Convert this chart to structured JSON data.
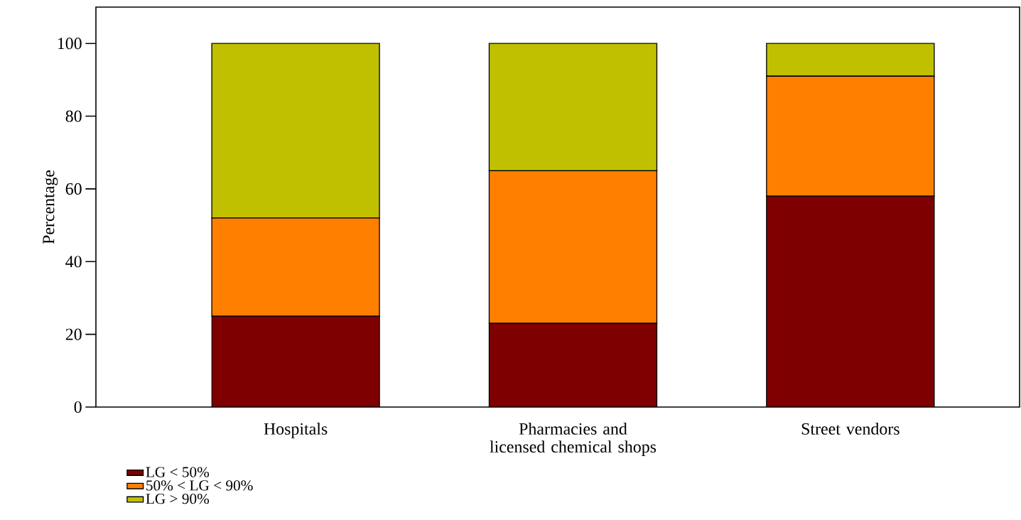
{
  "chart_data": {
    "type": "bar",
    "stacked": true,
    "ylabel": "Percentage",
    "categories": [
      "Hospitals",
      "Pharmacies and licensed chemical shops",
      "Street vendors"
    ],
    "series": [
      {
        "name": "LG < 50%",
        "color": "#7f0000",
        "values": [
          25,
          23,
          58
        ]
      },
      {
        "name": "50% < LG < 90%",
        "color": "#ff7f00",
        "values": [
          27,
          42,
          33
        ]
      },
      {
        "name": "LG > 90%",
        "color": "#c0c000",
        "values": [
          48,
          35,
          9
        ]
      }
    ],
    "ylim": [
      0,
      110
    ],
    "yticks": [
      0,
      20,
      40,
      60,
      80,
      100
    ],
    "legend": "bottom left"
  }
}
